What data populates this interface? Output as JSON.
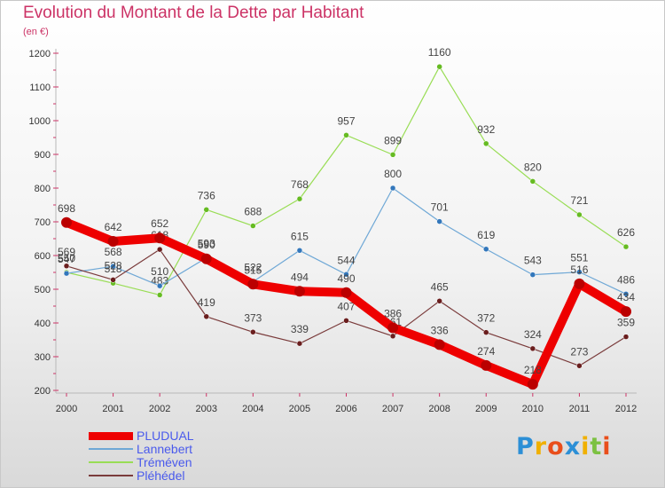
{
  "title": "Evolution du Montant de la Dette par Habitant",
  "unit": "(en €)",
  "logo": {
    "text": "Proxiti",
    "letters": [
      {
        "ch": "P",
        "color": "#2c8fd6"
      },
      {
        "ch": "r",
        "color": "#f0b000"
      },
      {
        "ch": "o",
        "color": "#e94e1b"
      },
      {
        "ch": "x",
        "color": "#2c8fd6"
      },
      {
        "ch": "i",
        "color": "#f0b000"
      },
      {
        "ch": "t",
        "color": "#7cc142"
      },
      {
        "ch": "i",
        "color": "#e94e1b"
      }
    ]
  },
  "chart_data": {
    "type": "line",
    "title": "Evolution du Montant de la Dette par Habitant",
    "subtitle": "(en €)",
    "x": [
      "2000",
      "2001",
      "2002",
      "2003",
      "2004",
      "2005",
      "2006",
      "2007",
      "2008",
      "2009",
      "2010",
      "2011",
      "2012"
    ],
    "ylim": [
      200,
      1200
    ],
    "yticks": [
      200,
      300,
      400,
      500,
      600,
      700,
      800,
      900,
      1000,
      1100,
      1200
    ],
    "grid": false,
    "legend_position": "bottom-left",
    "series": [
      {
        "name": "Tréméven",
        "color": "#99dd55",
        "marker": "#66bb22",
        "values": [
          550,
          518,
          483,
          736,
          688,
          768,
          957,
          899,
          1160,
          932,
          820,
          721,
          626
        ]
      },
      {
        "name": "Lannebert",
        "color": "#6fa8d6",
        "marker": "#3377bb",
        "values": [
          547,
          568,
          510,
          593,
          522,
          615,
          544,
          800,
          701,
          619,
          543,
          551,
          486
        ]
      },
      {
        "name": "Pléhédel",
        "color": "#7a3b3b",
        "marker": "#6a1e1e",
        "values": [
          569,
          528,
          618,
          419,
          373,
          339,
          407,
          361,
          465,
          372,
          324,
          273,
          359
        ]
      },
      {
        "name": "PLUDUAL",
        "color": "#ee0000",
        "marker": "#bb0000",
        "values": [
          698,
          642,
          652,
          590,
          515,
          494,
          490,
          386,
          336,
          274,
          218,
          516,
          434
        ]
      }
    ]
  }
}
